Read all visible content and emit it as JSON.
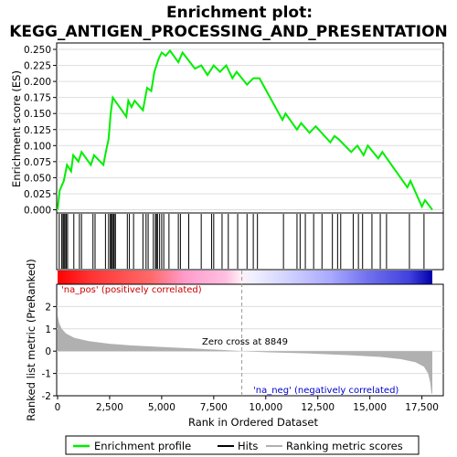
{
  "chart_data": {
    "type": "line",
    "title_line1": "Enrichment plot:",
    "title_line2": "KEGG_ANTIGEN_PROCESSING_AND_PRESENTATION",
    "xlabel": "Rank in Ordered Dataset",
    "ylabel_top": "Enrichment score (ES)",
    "ylabel_bottom": "Ranked list metric (PreRanked)",
    "xlim": [
      0,
      18000
    ],
    "es_ylim": [
      -0.005,
      0.26
    ],
    "metric_ylim": [
      -2,
      3
    ],
    "x_ticks": [
      0,
      2500,
      5000,
      7500,
      10000,
      12500,
      15000,
      17500
    ],
    "x_tick_labels": [
      "0",
      "2,500",
      "5,000",
      "7,500",
      "10,000",
      "12,500",
      "15,000",
      "17,500"
    ],
    "es_ticks": [
      0.0,
      0.025,
      0.05,
      0.075,
      0.1,
      0.125,
      0.15,
      0.175,
      0.2,
      0.225,
      0.25
    ],
    "es_tick_labels": [
      "0.000",
      "0.025",
      "0.050",
      "0.075",
      "0.100",
      "0.125",
      "0.150",
      "0.175",
      "0.200",
      "0.225",
      "0.250"
    ],
    "metric_ticks": [
      -2,
      -1,
      0,
      1,
      2
    ],
    "metric_tick_labels": [
      "-2",
      "-1",
      "0",
      "1",
      "2"
    ],
    "zero_cross": 8849,
    "zero_cross_label": "Zero cross at 8849",
    "pos_label": "'na_pos' (positively correlated)",
    "neg_label": "'na_neg' (negatively correlated)",
    "legend": [
      "Enrichment profile",
      "Hits",
      "Ranking metric scores"
    ],
    "colors": {
      "es_line": "#00ee00",
      "hits": "#000000",
      "metric_fill": "#b0b0b0",
      "pos_text": "#cc0000",
      "neg_text": "#0000cc",
      "grid": "#dddddd"
    },
    "es_profile": [
      {
        "x": 0,
        "y": 0.0
      },
      {
        "x": 100,
        "y": 0.03
      },
      {
        "x": 300,
        "y": 0.045
      },
      {
        "x": 450,
        "y": 0.07
      },
      {
        "x": 650,
        "y": 0.06
      },
      {
        "x": 750,
        "y": 0.085
      },
      {
        "x": 1000,
        "y": 0.075
      },
      {
        "x": 1150,
        "y": 0.09
      },
      {
        "x": 1600,
        "y": 0.07
      },
      {
        "x": 1750,
        "y": 0.085
      },
      {
        "x": 2200,
        "y": 0.07
      },
      {
        "x": 2350,
        "y": 0.095
      },
      {
        "x": 2450,
        "y": 0.11
      },
      {
        "x": 2550,
        "y": 0.15
      },
      {
        "x": 2650,
        "y": 0.175
      },
      {
        "x": 3300,
        "y": 0.145
      },
      {
        "x": 3400,
        "y": 0.17
      },
      {
        "x": 3550,
        "y": 0.16
      },
      {
        "x": 3700,
        "y": 0.17
      },
      {
        "x": 4100,
        "y": 0.155
      },
      {
        "x": 4300,
        "y": 0.19
      },
      {
        "x": 4500,
        "y": 0.185
      },
      {
        "x": 4650,
        "y": 0.215
      },
      {
        "x": 4850,
        "y": 0.235
      },
      {
        "x": 5000,
        "y": 0.245
      },
      {
        "x": 5200,
        "y": 0.24
      },
      {
        "x": 5400,
        "y": 0.248
      },
      {
        "x": 5800,
        "y": 0.23
      },
      {
        "x": 6000,
        "y": 0.245
      },
      {
        "x": 6600,
        "y": 0.22
      },
      {
        "x": 6900,
        "y": 0.225
      },
      {
        "x": 7200,
        "y": 0.21
      },
      {
        "x": 7500,
        "y": 0.225
      },
      {
        "x": 7800,
        "y": 0.215
      },
      {
        "x": 8100,
        "y": 0.225
      },
      {
        "x": 8400,
        "y": 0.205
      },
      {
        "x": 8600,
        "y": 0.215
      },
      {
        "x": 9100,
        "y": 0.195
      },
      {
        "x": 9400,
        "y": 0.205
      },
      {
        "x": 9700,
        "y": 0.205
      },
      {
        "x": 10800,
        "y": 0.14
      },
      {
        "x": 10950,
        "y": 0.15
      },
      {
        "x": 11500,
        "y": 0.125
      },
      {
        "x": 11700,
        "y": 0.135
      },
      {
        "x": 12100,
        "y": 0.12
      },
      {
        "x": 12400,
        "y": 0.13
      },
      {
        "x": 13100,
        "y": 0.105
      },
      {
        "x": 13300,
        "y": 0.115
      },
      {
        "x": 13500,
        "y": 0.11
      },
      {
        "x": 14100,
        "y": 0.09
      },
      {
        "x": 14400,
        "y": 0.1
      },
      {
        "x": 14700,
        "y": 0.085
      },
      {
        "x": 14900,
        "y": 0.1
      },
      {
        "x": 15400,
        "y": 0.08
      },
      {
        "x": 15600,
        "y": 0.09
      },
      {
        "x": 16800,
        "y": 0.035
      },
      {
        "x": 16950,
        "y": 0.045
      },
      {
        "x": 17500,
        "y": 0.005
      },
      {
        "x": 17650,
        "y": 0.015
      },
      {
        "x": 18000,
        "y": 0.0
      }
    ],
    "metric_profile": [
      {
        "x": 0,
        "y": 1.6
      },
      {
        "x": 80,
        "y": 1.25
      },
      {
        "x": 200,
        "y": 1.0
      },
      {
        "x": 400,
        "y": 0.8
      },
      {
        "x": 800,
        "y": 0.6
      },
      {
        "x": 1500,
        "y": 0.45
      },
      {
        "x": 2500,
        "y": 0.33
      },
      {
        "x": 3500,
        "y": 0.26
      },
      {
        "x": 5000,
        "y": 0.19
      },
      {
        "x": 6500,
        "y": 0.12
      },
      {
        "x": 8000,
        "y": 0.05
      },
      {
        "x": 8849,
        "y": 0.0
      },
      {
        "x": 10000,
        "y": -0.05
      },
      {
        "x": 12000,
        "y": -0.1
      },
      {
        "x": 14000,
        "y": -0.18
      },
      {
        "x": 15500,
        "y": -0.26
      },
      {
        "x": 16500,
        "y": -0.36
      },
      {
        "x": 17200,
        "y": -0.5
      },
      {
        "x": 17600,
        "y": -0.7
      },
      {
        "x": 17800,
        "y": -1.0
      },
      {
        "x": 17900,
        "y": -1.4
      },
      {
        "x": 17960,
        "y": -1.9
      },
      {
        "x": 18000,
        "y": -1.9
      }
    ],
    "hits": [
      80,
      200,
      260,
      310,
      360,
      420,
      480,
      780,
      1050,
      1150,
      1700,
      1800,
      2300,
      2450,
      2530,
      2580,
      2620,
      2680,
      2720,
      2780,
      3350,
      3450,
      3650,
      4100,
      4250,
      4350,
      4600,
      4700,
      4750,
      4800,
      4900,
      5000,
      5100,
      5350,
      5800,
      5900,
      6300,
      6900,
      7400,
      7500,
      7900,
      8200,
      8650,
      9100,
      9400,
      9600,
      10850,
      11500,
      11650,
      11900,
      12300,
      12700,
      13200,
      13450,
      13600,
      14200,
      14450,
      14650,
      15100,
      15500,
      15800,
      16900,
      17600
    ]
  }
}
